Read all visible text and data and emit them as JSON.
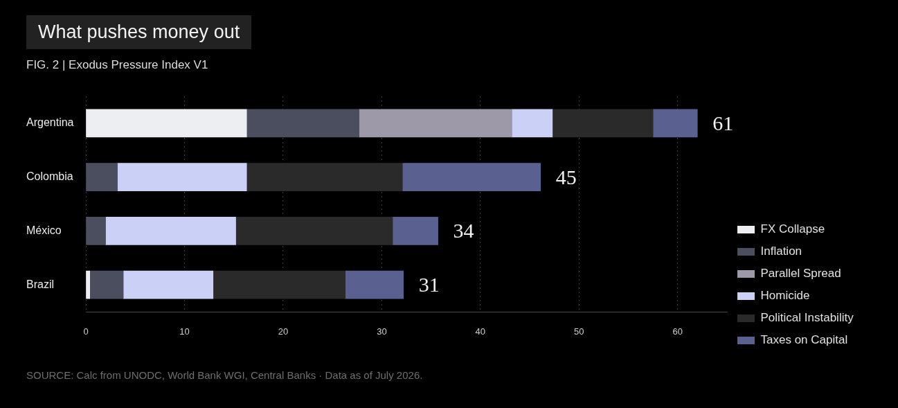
{
  "chart_data": {
    "type": "bar",
    "orientation": "horizontal",
    "stacked": true,
    "title": "What pushes money out",
    "subtitle": "FIG. 2 | Exodus Pressure Index V1",
    "annotations": [
      "SOURCE: Calc from UNODC, World Bank WGI, Central Banks · Data as of July 2026."
    ],
    "categories": [
      "Argentina",
      "Colombia",
      "México",
      "Brazil"
    ],
    "series": [
      {
        "name": "FX Collapse",
        "color": "#eceef2",
        "values": [
          16.3,
          null,
          null,
          0.4
        ]
      },
      {
        "name": "Inflation",
        "color": "#4a4e5f",
        "values": [
          11.4,
          3.2,
          2.0,
          3.4
        ]
      },
      {
        "name": "Parallel Spread",
        "color": "#9e99a8",
        "values": [
          15.5,
          null,
          null,
          null
        ]
      },
      {
        "name": "Homicide",
        "color": "#cbd0f6",
        "values": [
          4.1,
          13.1,
          13.2,
          9.1
        ]
      },
      {
        "name": "Political Instability",
        "color": "#2a2a2a",
        "values": [
          10.2,
          15.8,
          15.9,
          13.4
        ]
      },
      {
        "name": "Taxes on Capital",
        "color": "#5a6190",
        "values": [
          4.5,
          14.0,
          4.6,
          5.9
        ]
      }
    ],
    "totals": [
      "61",
      "45",
      "34",
      "31"
    ],
    "xlim": [
      0,
      65
    ],
    "xticks": [
      0,
      10,
      20,
      30,
      40,
      50,
      60
    ],
    "grid": "x",
    "legend": "right"
  }
}
